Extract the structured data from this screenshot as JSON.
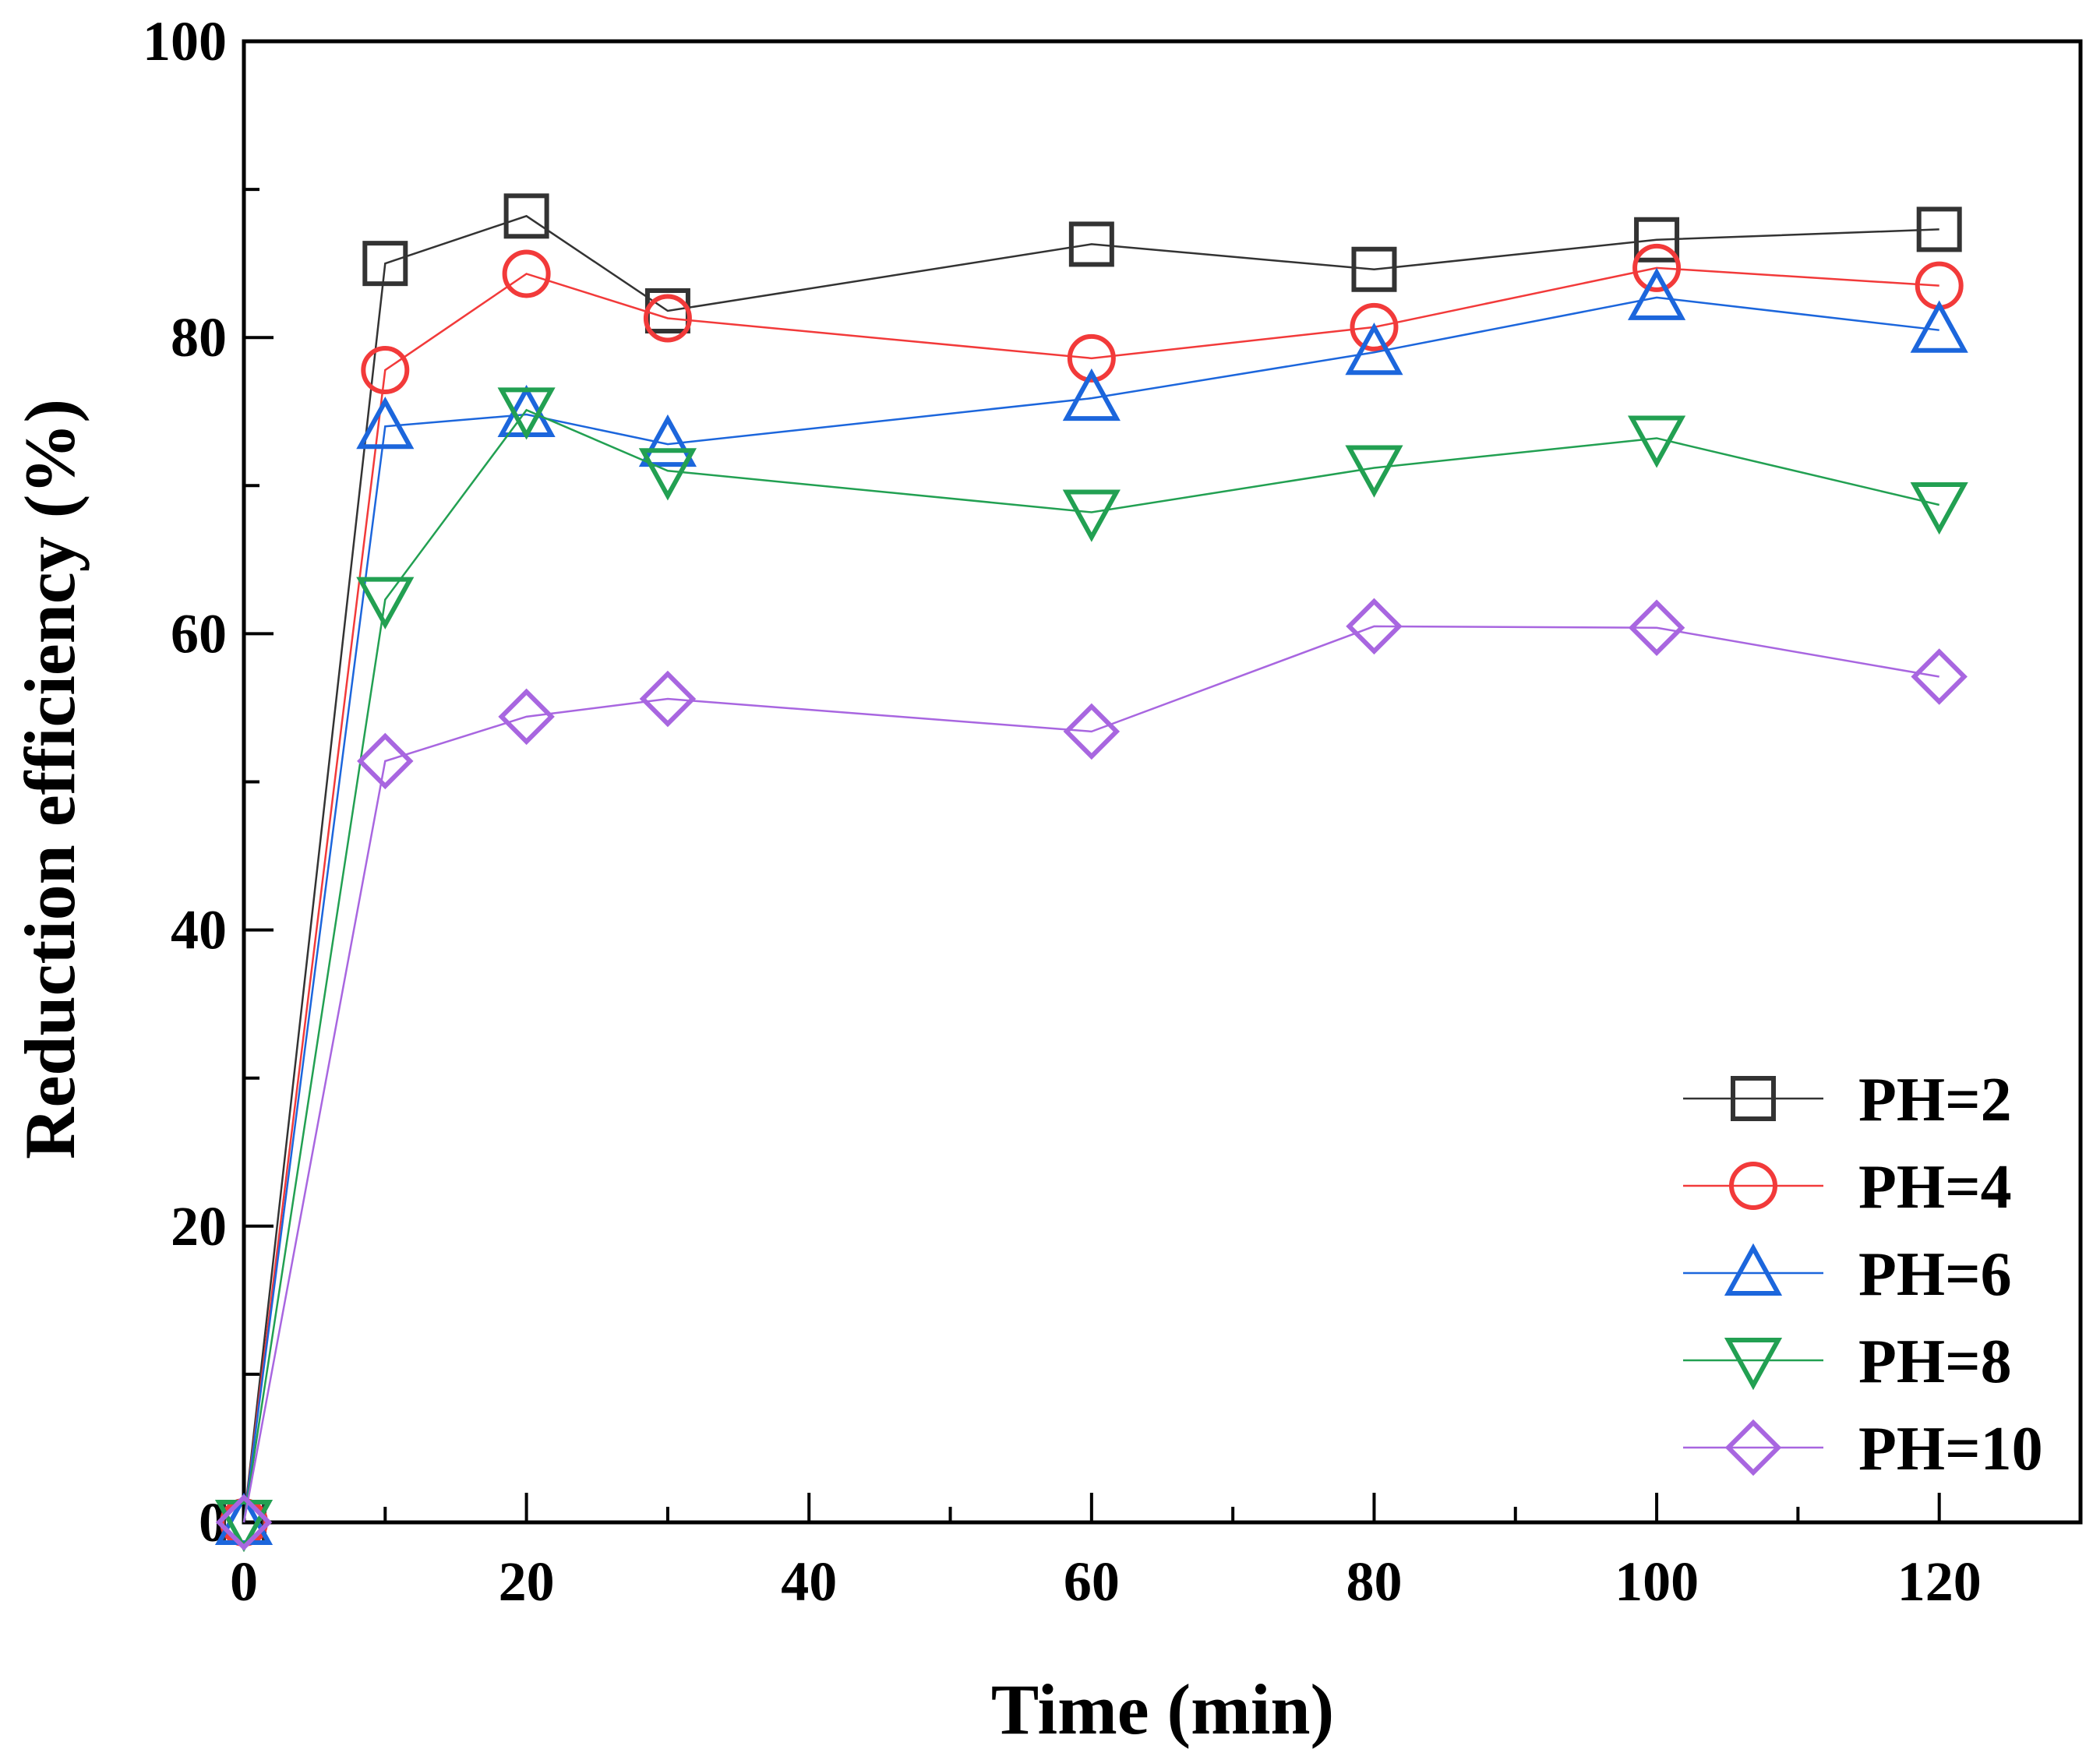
{
  "chart_data": {
    "type": "line",
    "title": "",
    "xlabel": "Time (min)",
    "ylabel": "Reduction efficiency (%)",
    "xlim": [
      0,
      130
    ],
    "ylim": [
      0,
      100
    ],
    "xticks": [
      0,
      20,
      40,
      60,
      80,
      100,
      120
    ],
    "yticks": [
      0,
      20,
      40,
      60,
      80,
      100
    ],
    "grid": false,
    "legend_position": "bottom-right",
    "x": [
      0,
      10,
      20,
      30,
      60,
      80,
      100,
      120
    ],
    "series": [
      {
        "name": "PH=2",
        "marker": "square",
        "color": "#333333",
        "values": [
          0,
          85.0,
          88.2,
          81.8,
          86.3,
          84.6,
          86.6,
          87.3
        ]
      },
      {
        "name": "PH=4",
        "marker": "circle",
        "color": "#f23a3a",
        "values": [
          0,
          77.8,
          84.3,
          81.3,
          78.6,
          80.7,
          84.7,
          83.5
        ]
      },
      {
        "name": "PH=6",
        "marker": "triangle-up",
        "color": "#1c66dc",
        "values": [
          0,
          74.0,
          74.8,
          72.8,
          75.9,
          79.0,
          82.7,
          80.5
        ]
      },
      {
        "name": "PH=8",
        "marker": "triangle-down",
        "color": "#22a052",
        "values": [
          0,
          62.3,
          75.1,
          71.0,
          68.2,
          71.2,
          73.2,
          68.7
        ]
      },
      {
        "name": "PH=10",
        "marker": "diamond",
        "color": "#a866e0",
        "values": [
          0,
          51.4,
          54.4,
          55.6,
          53.4,
          60.5,
          60.4,
          57.1
        ]
      }
    ]
  }
}
